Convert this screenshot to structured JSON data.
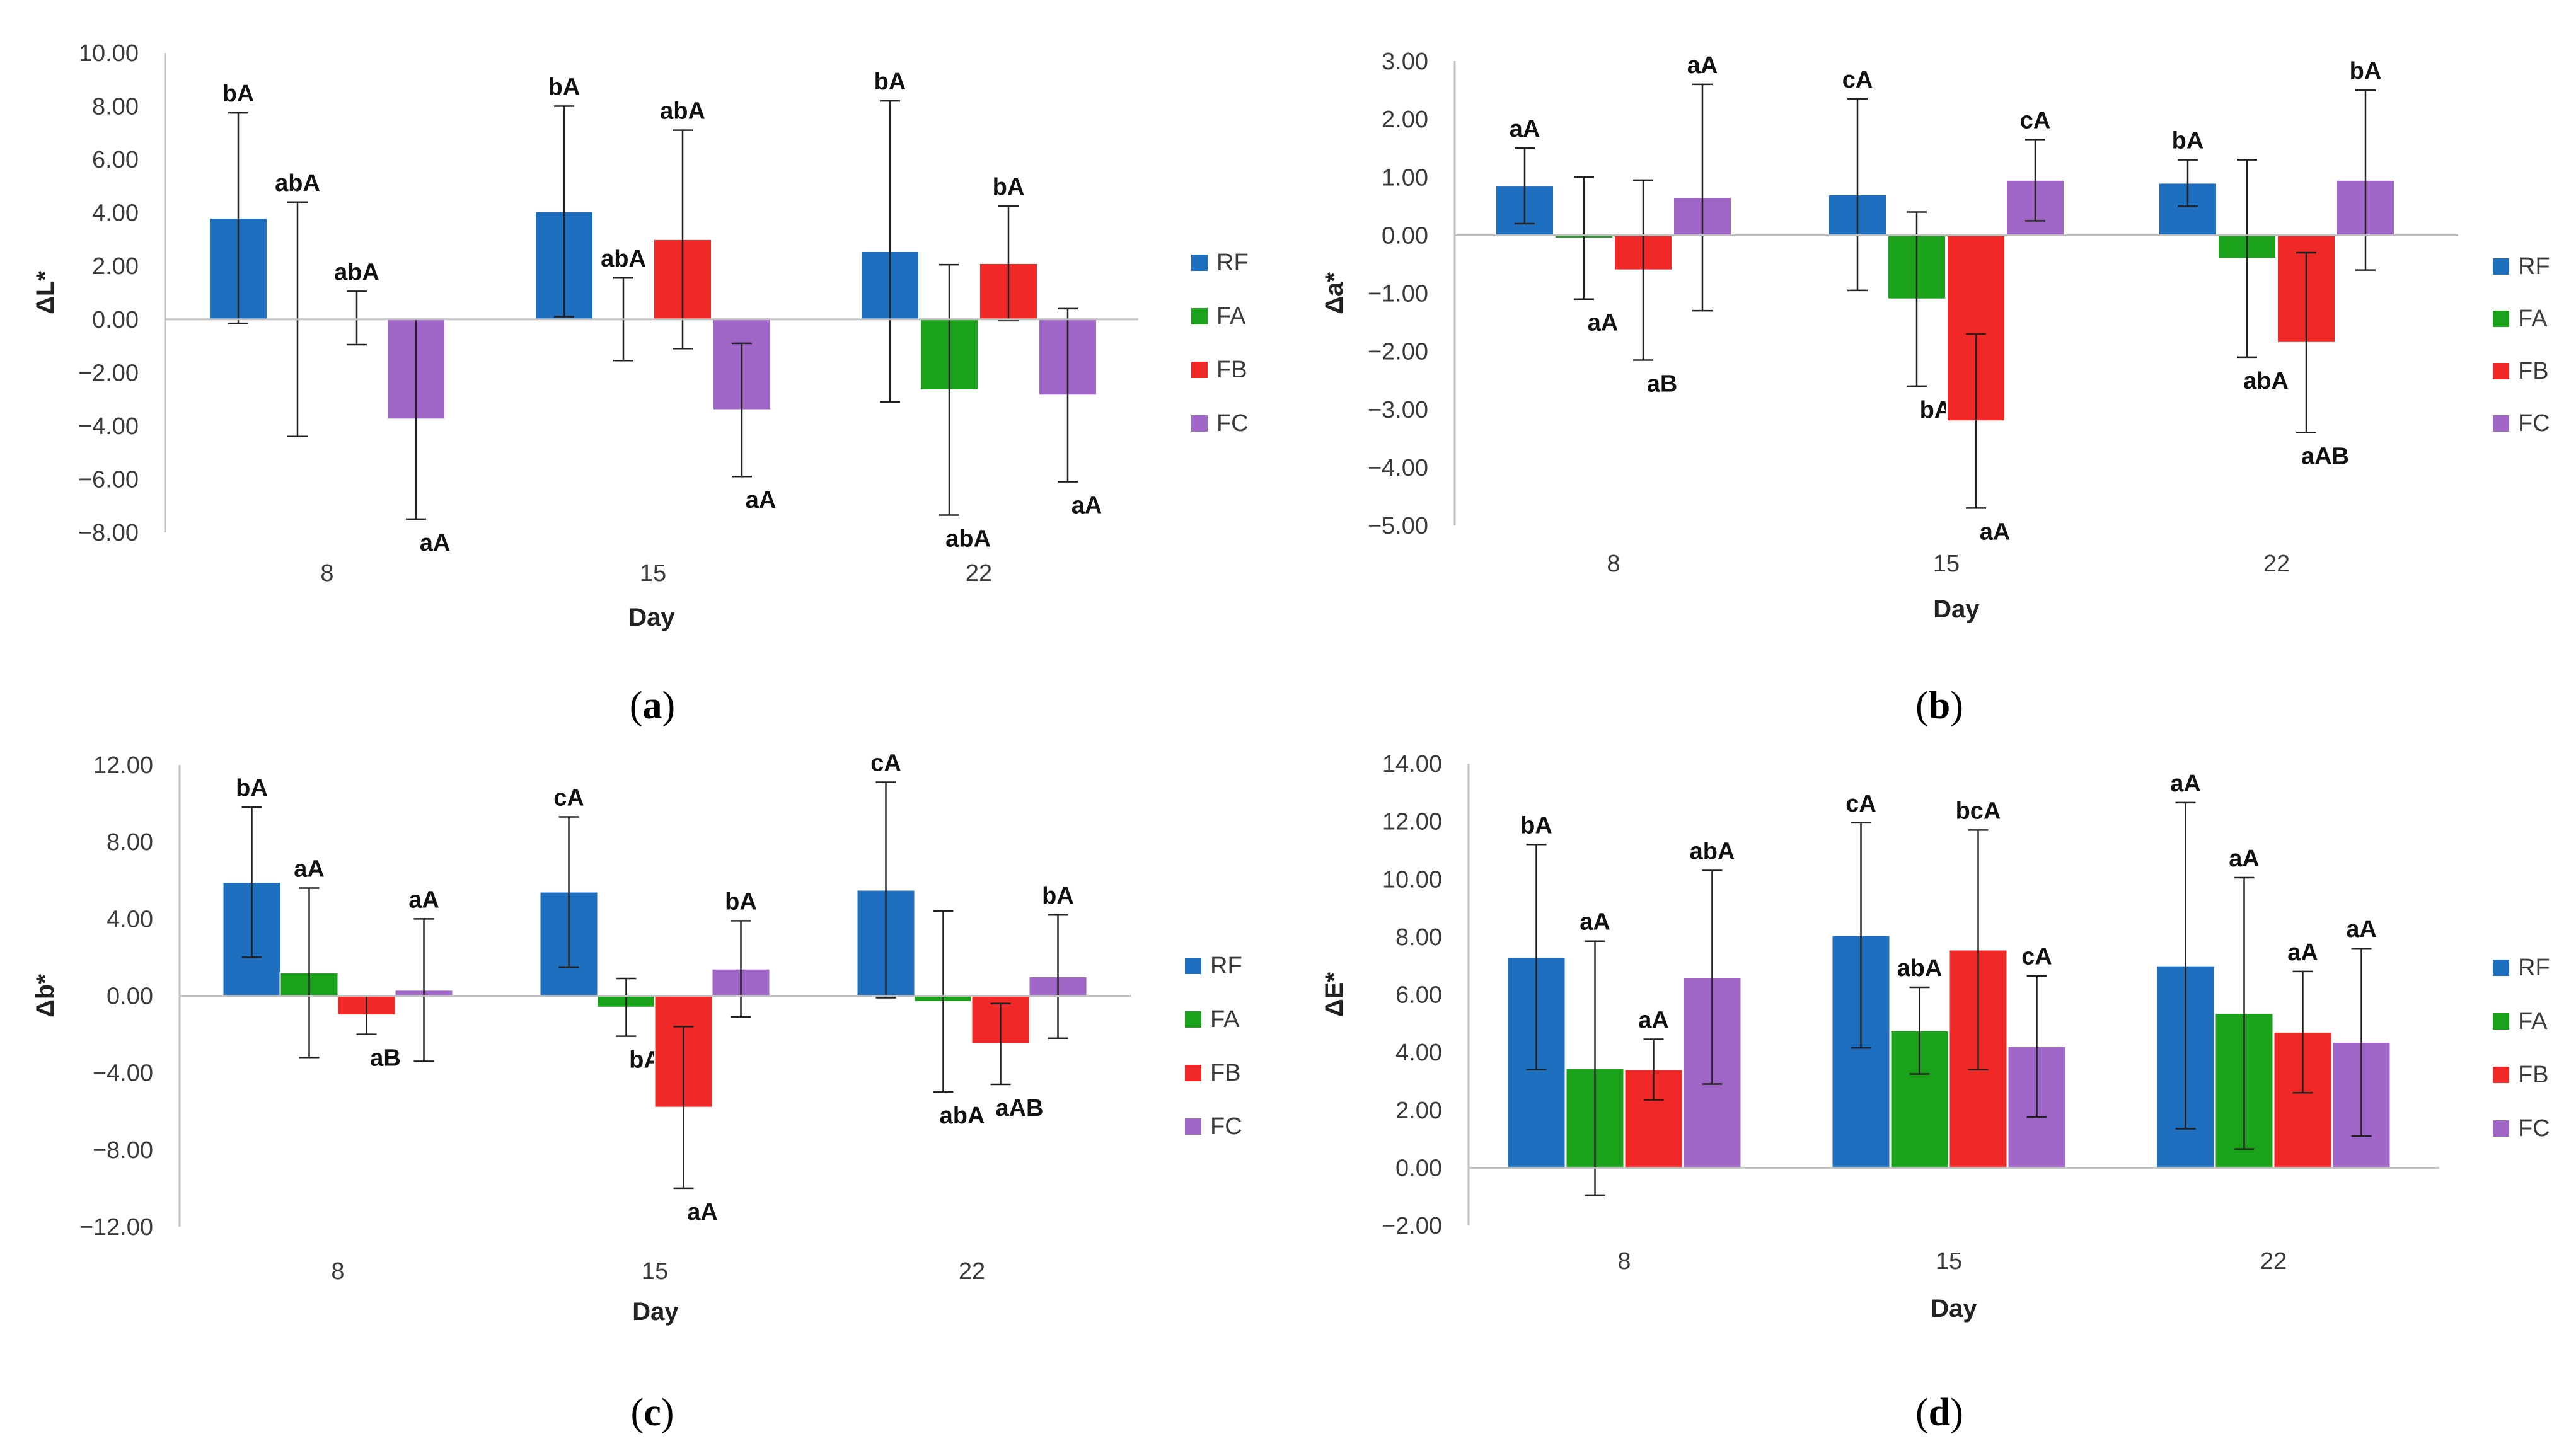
{
  "colors": {
    "RF": "#1f6fc1",
    "FA": "#1aa31a",
    "FB": "#f02828",
    "FC": "#a066c8"
  },
  "chart_data": [
    {
      "type": "bar",
      "panel": "a",
      "title": "",
      "xlabel": "Day",
      "ylabel": "ΔL*",
      "categories": [
        "8",
        "15",
        "22"
      ],
      "ylim": [
        -8,
        10
      ],
      "yticks": [
        "10.00",
        "8.00",
        "6.00",
        "4.00",
        "2.00",
        "0.00",
        "−2.00",
        "−4.00",
        "−6.00",
        "−8.00"
      ],
      "ytick_values": [
        10,
        8,
        6,
        4,
        2,
        0,
        -2,
        -4,
        -6,
        -8
      ],
      "legend": [
        "RF",
        "FA",
        "FB",
        "FC"
      ],
      "series": [
        {
          "name": "RF",
          "values": [
            3.8,
            4.05,
            2.55
          ],
          "errors": [
            3.95,
            3.95,
            5.65
          ],
          "labels": [
            "bA",
            "bA",
            "bA"
          ]
        },
        {
          "name": "FA",
          "values": [
            0.0,
            0.0,
            -2.65
          ],
          "errors": [
            4.4,
            1.55,
            4.7
          ],
          "labels": [
            "abA",
            "abA",
            "abA"
          ]
        },
        {
          "name": "FB",
          "values": [
            0.05,
            3.0,
            2.1
          ],
          "errors": [
            1.0,
            4.1,
            2.15
          ],
          "labels": [
            "abA",
            "abA",
            "bA"
          ]
        },
        {
          "name": "FC",
          "values": [
            -3.75,
            -3.4,
            -2.85
          ],
          "errors": [
            3.75,
            2.5,
            3.25
          ],
          "labels": [
            "aA",
            "aA",
            "aA"
          ]
        }
      ]
    },
    {
      "type": "bar",
      "panel": "b",
      "title": "",
      "xlabel": "Day",
      "ylabel": "Δa*",
      "categories": [
        "8",
        "15",
        "22"
      ],
      "ylim": [
        -5,
        3
      ],
      "yticks": [
        "3.00",
        "2.00",
        "1.00",
        "0.00",
        "−1.00",
        "−2.00",
        "−3.00",
        "−4.00",
        "−5.00"
      ],
      "ytick_values": [
        3,
        2,
        1,
        0,
        -1,
        -2,
        -3,
        -4,
        -5
      ],
      "legend": [
        "RF",
        "FA",
        "FB",
        "FC"
      ],
      "series": [
        {
          "name": "RF",
          "values": [
            0.85,
            0.7,
            0.9
          ],
          "errors": [
            0.65,
            1.65,
            0.4
          ],
          "labels": [
            "aA",
            "cA",
            "bA"
          ]
        },
        {
          "name": "FA",
          "values": [
            -0.05,
            -1.1,
            -0.4
          ],
          "errors": [
            1.05,
            1.5,
            1.7
          ],
          "labels": [
            "aA",
            "bA",
            "abA"
          ]
        },
        {
          "name": "FB",
          "values": [
            -0.6,
            -3.2,
            -1.85
          ],
          "errors": [
            1.55,
            1.5,
            1.55
          ],
          "labels": [
            "aB",
            "aA",
            "aAB"
          ]
        },
        {
          "name": "FC",
          "values": [
            0.65,
            0.95,
            0.95
          ],
          "errors": [
            1.95,
            0.7,
            1.55
          ],
          "labels": [
            "aA",
            "cA",
            "bA"
          ]
        }
      ]
    },
    {
      "type": "bar",
      "panel": "c",
      "title": "",
      "xlabel": "Day",
      "ylabel": "Δb*",
      "categories": [
        "8",
        "15",
        "22"
      ],
      "ylim": [
        -12,
        12
      ],
      "yticks": [
        "12.00",
        "8.00",
        "4.00",
        "0.00",
        "−4.00",
        "−8.00",
        "−12.00"
      ],
      "ytick_values": [
        12,
        8,
        4,
        0,
        -4,
        -8,
        -12
      ],
      "legend": [
        "RF",
        "FA",
        "FB",
        "FC"
      ],
      "series": [
        {
          "name": "RF",
          "values": [
            5.9,
            5.4,
            5.5
          ],
          "errors": [
            3.9,
            3.9,
            5.6
          ],
          "labels": [
            "bA",
            "cA",
            "cA"
          ]
        },
        {
          "name": "FA",
          "values": [
            1.2,
            -0.6,
            -0.3
          ],
          "errors": [
            4.4,
            1.5,
            4.7
          ],
          "labels": [
            "aA",
            "bA",
            "abA"
          ]
        },
        {
          "name": "FB",
          "values": [
            -1.0,
            -5.8,
            -2.5
          ],
          "errors": [
            1.0,
            4.2,
            2.1
          ],
          "labels": [
            "aB",
            "aA",
            "aAB"
          ]
        },
        {
          "name": "FC",
          "values": [
            0.3,
            1.4,
            1.0
          ],
          "errors": [
            3.7,
            2.5,
            3.2
          ],
          "labels": [
            "aA",
            "bA",
            "bA"
          ]
        }
      ]
    },
    {
      "type": "bar",
      "panel": "d",
      "title": "",
      "xlabel": "Day",
      "ylabel": "ΔE*",
      "categories": [
        "8",
        "15",
        "22"
      ],
      "ylim": [
        -2,
        14
      ],
      "yticks": [
        "14.00",
        "12.00",
        "10.00",
        "8.00",
        "6.00",
        "4.00",
        "2.00",
        "0.00",
        "−2.00"
      ],
      "ytick_values": [
        14,
        12,
        10,
        8,
        6,
        4,
        2,
        0,
        -2
      ],
      "legend": [
        "RF",
        "FA",
        "FB",
        "FC"
      ],
      "series": [
        {
          "name": "RF",
          "values": [
            7.3,
            8.05,
            7.0
          ],
          "errors": [
            3.9,
            3.9,
            5.65
          ],
          "labels": [
            "bA",
            "cA",
            "aA"
          ]
        },
        {
          "name": "FA",
          "values": [
            3.45,
            4.75,
            5.35
          ],
          "errors": [
            4.4,
            1.5,
            4.7
          ],
          "labels": [
            "aA",
            "abA",
            "aA"
          ]
        },
        {
          "name": "FB",
          "values": [
            3.4,
            7.55,
            4.7
          ],
          "errors": [
            1.05,
            4.15,
            2.1
          ],
          "labels": [
            "aA",
            "bcA",
            "aA"
          ]
        },
        {
          "name": "FC",
          "values": [
            6.6,
            4.2,
            4.35
          ],
          "errors": [
            3.7,
            2.45,
            3.25
          ],
          "labels": [
            "abA",
            "cA",
            "aA"
          ]
        }
      ]
    }
  ],
  "panel_labels": [
    "a",
    "b",
    "c",
    "d"
  ]
}
